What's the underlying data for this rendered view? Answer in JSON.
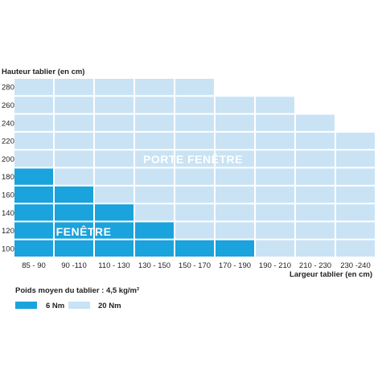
{
  "chart_data": {
    "type": "heatmap",
    "ylabel": "Hauteur tablier (en cm)",
    "xlabel": "Largeur tablier (en cm)",
    "x_categories": [
      "85 - 90",
      "90 -110",
      "110 - 130",
      "130 - 150",
      "150 - 170",
      "170 - 190",
      "190 - 210",
      "210 - 230",
      "230 -240"
    ],
    "y_categories": [
      "100",
      "120",
      "140",
      "160",
      "180",
      "200",
      "220",
      "240",
      "260",
      "280"
    ],
    "cells": [
      [
        "6 Nm",
        "6 Nm",
        "6 Nm",
        "6 Nm",
        "6 Nm",
        "6 Nm",
        "20 Nm",
        "20 Nm",
        "20 Nm"
      ],
      [
        "6 Nm",
        "6 Nm",
        "6 Nm",
        "6 Nm",
        "20 Nm",
        "20 Nm",
        "20 Nm",
        "20 Nm",
        "20 Nm"
      ],
      [
        "6 Nm",
        "6 Nm",
        "6 Nm",
        "20 Nm",
        "20 Nm",
        "20 Nm",
        "20 Nm",
        "20 Nm",
        "20 Nm"
      ],
      [
        "6 Nm",
        "6 Nm",
        "20 Nm",
        "20 Nm",
        "20 Nm",
        "20 Nm",
        "20 Nm",
        "20 Nm",
        "20 Nm"
      ],
      [
        "6 Nm",
        "20 Nm",
        "20 Nm",
        "20 Nm",
        "20 Nm",
        "20 Nm",
        "20 Nm",
        "20 Nm",
        "20 Nm"
      ],
      [
        "20 Nm",
        "20 Nm",
        "20 Nm",
        "20 Nm",
        "20 Nm",
        "20 Nm",
        "20 Nm",
        "20 Nm",
        "20 Nm"
      ],
      [
        "20 Nm",
        "20 Nm",
        "20 Nm",
        "20 Nm",
        "20 Nm",
        "20 Nm",
        "20 Nm",
        "20 Nm",
        "20 Nm"
      ],
      [
        "20 Nm",
        "20 Nm",
        "20 Nm",
        "20 Nm",
        "20 Nm",
        "20 Nm",
        "20 Nm",
        "20 Nm",
        null
      ],
      [
        "20 Nm",
        "20 Nm",
        "20 Nm",
        "20 Nm",
        "20 Nm",
        "20 Nm",
        "20 Nm",
        null,
        null
      ],
      [
        "20 Nm",
        "20 Nm",
        "20 Nm",
        "20 Nm",
        "20 Nm",
        null,
        null,
        null,
        null
      ]
    ],
    "regions": [
      {
        "label": "PORTE FENÊTRE",
        "legend_key": "20 Nm"
      },
      {
        "label": "FENÊTRE",
        "legend_key": "6 Nm"
      }
    ],
    "legend": {
      "title": "Poids moyen du tablier : 4,5 kg/m²",
      "items": [
        {
          "label": "6 Nm",
          "color": "#1aa3dc"
        },
        {
          "label": "20 Nm",
          "color": "#c9e3f5"
        }
      ],
      "placement": "bottom-left"
    },
    "colors": {
      "6 Nm": "#1aa3dc",
      "20 Nm": "#c9e3f5"
    }
  }
}
